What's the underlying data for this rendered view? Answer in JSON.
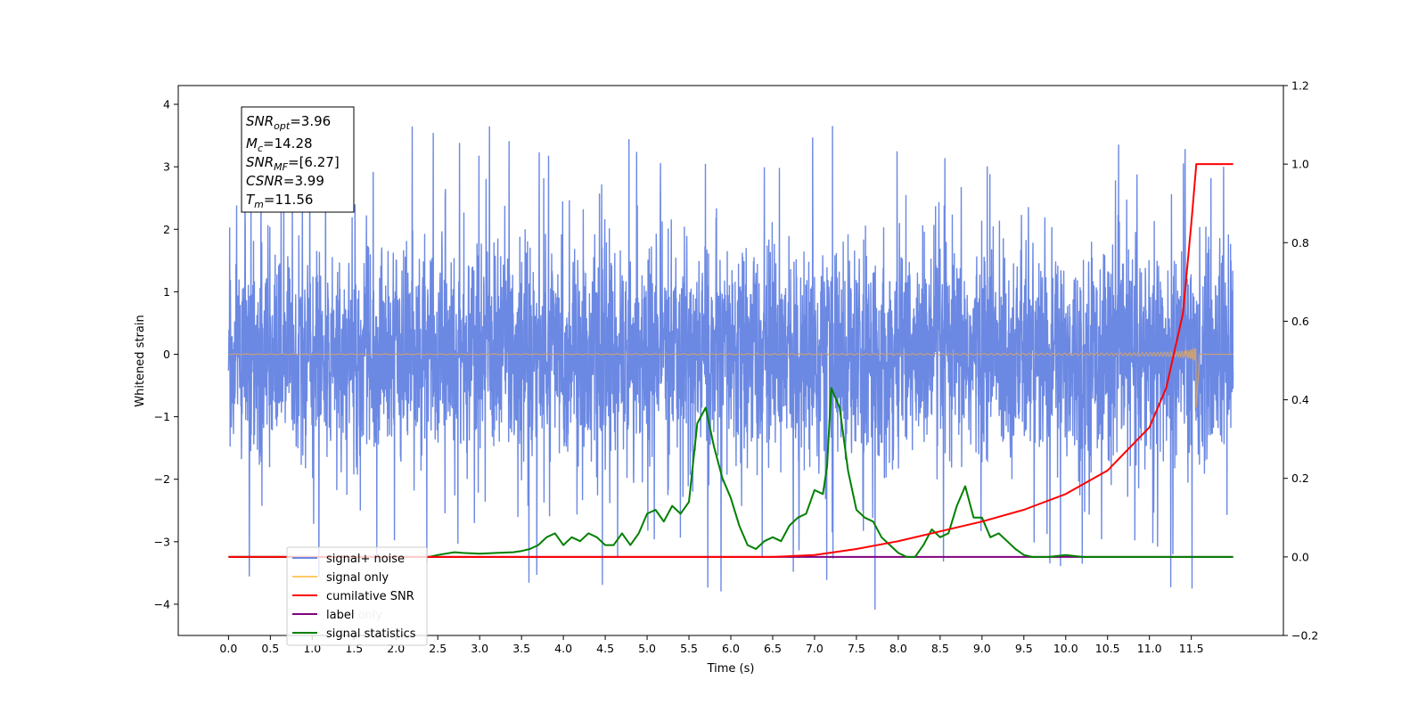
{
  "chart_data": {
    "type": "line",
    "xlabel": "Time (s)",
    "ylabel": "Whitened strain",
    "xlim": [
      -0.6,
      12.6
    ],
    "ylim_left": [
      -4.5,
      4.3
    ],
    "ylim_right": [
      -0.2,
      1.2
    ],
    "x_ticks": [
      "0.0",
      "0.5",
      "1.0",
      "1.5",
      "2.0",
      "2.5",
      "3.0",
      "3.5",
      "4.0",
      "4.5",
      "5.0",
      "5.5",
      "6.0",
      "6.5",
      "7.0",
      "7.5",
      "8.0",
      "8.5",
      "9.0",
      "9.5",
      "10.0",
      "10.5",
      "11.0",
      "11.5"
    ],
    "y_ticks_left": [
      "4",
      "3",
      "2",
      "1",
      "0",
      "−1",
      "−2",
      "−3",
      "−4"
    ],
    "y_ticks_right": [
      "1.2",
      "1.0",
      "0.8",
      "0.6",
      "0.4",
      "0.2",
      "0.0",
      "−0.2"
    ],
    "info_box": {
      "snr_opt": {
        "symbol": "SNR",
        "sub": "opt",
        "value": "=3.96"
      },
      "mc": {
        "symbol": "M",
        "sub": "c",
        "value": "=14.28"
      },
      "snr_mf": {
        "symbol": "SNR",
        "sub": "MF",
        "value": "=[6.27]"
      },
      "csnr": {
        "symbol": "CSNR",
        "sub": "",
        "value": "=3.99"
      },
      "tm": {
        "symbol": "T",
        "sub": "m",
        "value": "=11.56"
      }
    },
    "legend": {
      "placement": "lower-left",
      "entries": [
        "signal+ noise",
        "signal only",
        "cumilative SNR",
        "label",
        "signal statistics"
      ],
      "occluded_text": "label only"
    },
    "series": [
      {
        "name": "signal+ noise",
        "axis": "left",
        "color": "#6b88e3",
        "t_range": [
          0.0,
          12.0
        ],
        "typical_band": [
          -1.7,
          1.7
        ],
        "spike_range": [
          -4.1,
          3.9
        ]
      },
      {
        "name": "signal only",
        "axis": "left",
        "color": "#c8a07a",
        "t_range": [
          0.0,
          12.0
        ],
        "merger_time": 11.56,
        "peak_amplitude": [
          -0.85,
          0.6
        ]
      },
      {
        "name": "cumilative SNR",
        "axis": "right",
        "color": "#ff0000",
        "x": [
          0.0,
          6.5,
          7.0,
          7.5,
          8.0,
          8.5,
          9.0,
          9.5,
          10.0,
          10.5,
          11.0,
          11.2,
          11.4,
          11.5,
          11.56,
          12.0
        ],
        "y": [
          0.0,
          0.0,
          0.005,
          0.02,
          0.04,
          0.065,
          0.09,
          0.12,
          0.16,
          0.22,
          0.33,
          0.43,
          0.62,
          0.85,
          1.0,
          1.0
        ]
      },
      {
        "name": "label",
        "axis": "right",
        "color": "#800080",
        "x": [
          0.0,
          12.0
        ],
        "y": [
          0.0,
          0.0
        ]
      },
      {
        "name": "signal statistics",
        "axis": "right",
        "color": "#008000",
        "x": [
          0.0,
          2.4,
          2.5,
          2.7,
          2.8,
          3.0,
          3.2,
          3.4,
          3.5,
          3.6,
          3.7,
          3.8,
          3.9,
          4.0,
          4.1,
          4.2,
          4.3,
          4.4,
          4.5,
          4.6,
          4.7,
          4.8,
          4.9,
          5.0,
          5.1,
          5.2,
          5.3,
          5.4,
          5.5,
          5.6,
          5.7,
          5.8,
          5.9,
          6.0,
          6.1,
          6.2,
          6.3,
          6.4,
          6.5,
          6.6,
          6.7,
          6.8,
          6.9,
          7.0,
          7.1,
          7.15,
          7.2,
          7.3,
          7.4,
          7.5,
          7.6,
          7.7,
          7.8,
          7.9,
          8.0,
          8.1,
          8.2,
          8.3,
          8.4,
          8.5,
          8.6,
          8.7,
          8.8,
          8.9,
          9.0,
          9.1,
          9.2,
          9.3,
          9.4,
          9.5,
          9.6,
          9.7,
          9.8,
          10.0,
          10.2,
          10.5,
          11.0,
          11.5,
          11.6,
          12.0
        ],
        "y": [
          0.0,
          0.0,
          0.005,
          0.012,
          0.01,
          0.008,
          0.01,
          0.012,
          0.015,
          0.02,
          0.03,
          0.05,
          0.06,
          0.03,
          0.05,
          0.04,
          0.06,
          0.05,
          0.03,
          0.03,
          0.06,
          0.03,
          0.06,
          0.11,
          0.12,
          0.09,
          0.13,
          0.11,
          0.14,
          0.34,
          0.38,
          0.28,
          0.2,
          0.15,
          0.08,
          0.03,
          0.02,
          0.04,
          0.05,
          0.04,
          0.08,
          0.1,
          0.11,
          0.17,
          0.16,
          0.23,
          0.43,
          0.38,
          0.22,
          0.12,
          0.1,
          0.09,
          0.05,
          0.03,
          0.01,
          0.0,
          0.0,
          0.03,
          0.07,
          0.05,
          0.06,
          0.13,
          0.18,
          0.1,
          0.1,
          0.05,
          0.06,
          0.04,
          0.02,
          0.005,
          0.0,
          0.0,
          0.0,
          0.005,
          0.0,
          0.0,
          0.0,
          0.0,
          0.0,
          0.0
        ]
      }
    ]
  }
}
